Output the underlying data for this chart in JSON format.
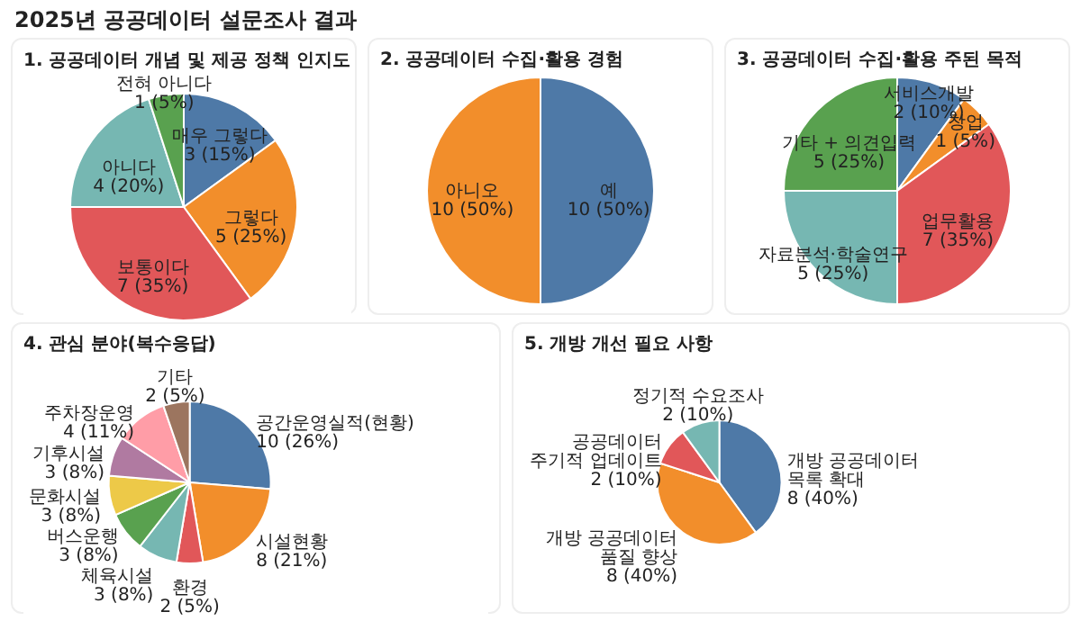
{
  "chart_data": [
    {
      "type": "pie",
      "annotations": [
        "2025년 공공데이터 설문조사 결과"
      ],
      "title": "1. 공공데이터 개념 및 제공 정책 인지도",
      "categories": [
        "매우 그렇다",
        "그렇다",
        "보통이다",
        "아니다",
        "전혀 아니다"
      ],
      "values": [
        3,
        5,
        7,
        4,
        1
      ],
      "value_labels": [
        "3 (15%)",
        "5 (25%)",
        "7 (35%)",
        "4 (20%)",
        "1 (5%)"
      ],
      "colors": [
        "#4e79a7",
        "#f28e2b",
        "#e15759",
        "#76b7b2",
        "#59a14f"
      ]
    },
    {
      "type": "pie",
      "title": "2. 공공데이터 수집·활용 경험",
      "categories": [
        "예",
        "아니오"
      ],
      "values": [
        10,
        10
      ],
      "value_labels": [
        "10 (50%)",
        "10 (50%)"
      ],
      "colors": [
        "#4e79a7",
        "#f28e2b"
      ]
    },
    {
      "type": "pie",
      "title": "3. 공공데이터 수집·활용 주된 목적",
      "categories": [
        "서비스개발",
        "창업",
        "업무활용",
        "자료분석·학술연구",
        "기타 + 의견입력"
      ],
      "values": [
        2,
        1,
        7,
        5,
        5
      ],
      "value_labels": [
        "2 (10%)",
        "1 (5%)",
        "7 (35%)",
        "5 (25%)",
        "5 (25%)"
      ],
      "colors": [
        "#4e79a7",
        "#f28e2b",
        "#e15759",
        "#76b7b2",
        "#59a14f"
      ]
    },
    {
      "type": "pie",
      "title": "4. 관심 분야(복수응답)",
      "categories": [
        "공간운영실적(현황)",
        "시설현황",
        "환경",
        "체육시설",
        "버스운행",
        "문화시설",
        "기후시설",
        "주차장운영",
        "기타"
      ],
      "values": [
        10,
        8,
        2,
        3,
        3,
        3,
        3,
        4,
        2
      ],
      "value_labels": [
        "10 (26%)",
        "8 (21%)",
        "2 (5%)",
        "3 (8%)",
        "3 (8%)",
        "3 (8%)",
        "3 (8%)",
        "4 (11%)",
        "2 (5%)"
      ],
      "colors": [
        "#4e79a7",
        "#f28e2b",
        "#e15759",
        "#76b7b2",
        "#59a14f",
        "#edc948",
        "#b07aa1",
        "#ff9da7",
        "#9c755f"
      ]
    },
    {
      "type": "pie",
      "title": "5. 개방 개선 필요 사항",
      "categories": [
        "개방 공공데이터 목록 확대",
        "개방 공공데이터 품질 향상",
        "공공데이터 주기적 업데이트",
        "정기적 수요조사"
      ],
      "values": [
        8,
        8,
        2,
        2
      ],
      "value_labels": [
        "8 (40%)",
        "8 (40%)",
        "2 (10%)",
        "2 (10%)"
      ],
      "colors": [
        "#4e79a7",
        "#f28e2b",
        "#e15759",
        "#76b7b2"
      ]
    }
  ]
}
